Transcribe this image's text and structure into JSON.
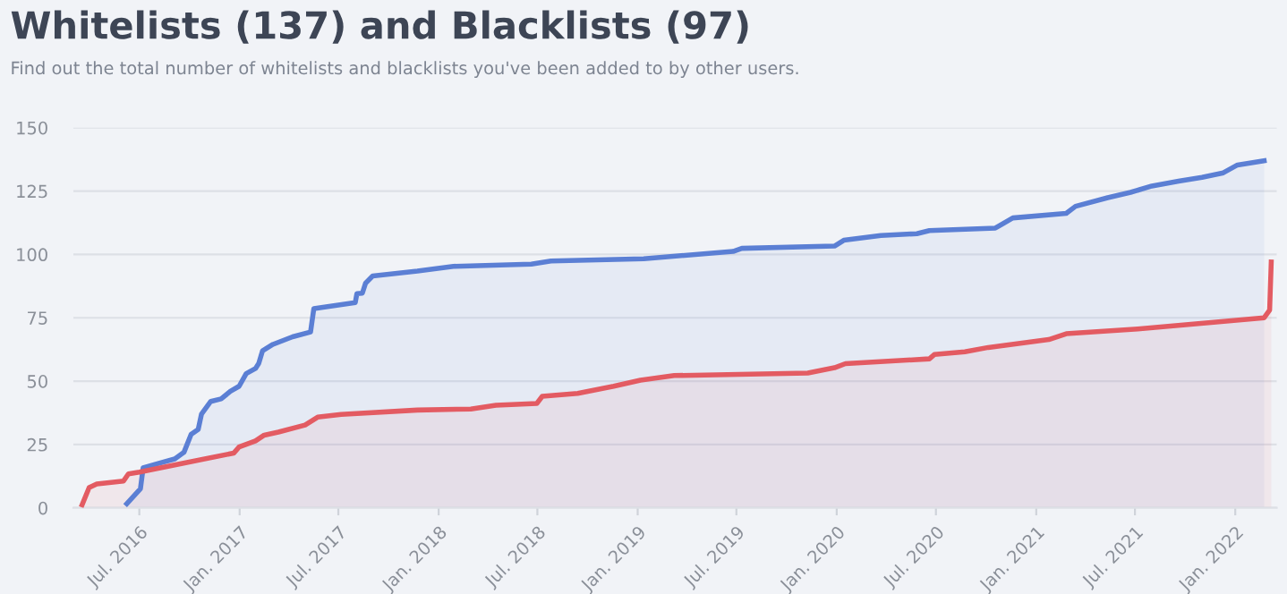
{
  "chart_data": {
    "type": "area",
    "title": "Whitelists (137) and Blacklists (97)",
    "subtitle": "Find out the total number of whitelists and blacklists you've been added to by other users.",
    "series": [
      {
        "color": "#5b7fd4",
        "x": [
          "2016-06-08",
          "2016-07-03",
          "2016-07-08",
          "2016-08-03",
          "2016-09-04",
          "2016-09-21",
          "2016-10-04",
          "2016-10-17",
          "2016-10-23",
          "2016-11-09",
          "2016-11-28",
          "2016-12-15",
          "2016-12-31",
          "2017-01-13",
          "2017-01-30",
          "2017-02-05",
          "2017-02-12",
          "2017-03-03",
          "2017-04-08",
          "2017-05-11",
          "2017-05-17",
          "2017-08-01",
          "2017-08-04",
          "2017-08-14",
          "2017-08-20",
          "2017-09-02",
          "2017-11-23",
          "2018-01-28",
          "2018-06-20",
          "2018-07-26",
          "2019-01-12",
          "2019-06-25",
          "2019-07-11",
          "2019-12-28",
          "2020-01-14",
          "2020-03-22",
          "2020-05-27",
          "2020-06-19",
          "2020-10-18",
          "2020-11-19",
          "2021-02-25",
          "2021-03-14",
          "2021-05-12",
          "2021-06-23",
          "2021-08-01",
          "2021-09-19",
          "2021-11-01",
          "2021-12-10",
          "2022-01-05",
          "2022-02-23"
        ],
        "values": [
          1.6,
          7.5,
          15.8,
          17.4,
          19.3,
          22,
          29,
          31,
          37,
          42,
          43,
          46,
          48,
          53,
          55,
          57,
          62,
          64.5,
          67.5,
          69.4,
          78.6,
          81,
          84.5,
          84.7,
          88.7,
          91.5,
          93.4,
          95.3,
          96.2,
          97.4,
          98.3,
          101.2,
          102.4,
          103.3,
          105.6,
          107.5,
          108.2,
          109.4,
          110.4,
          114.4,
          116.2,
          119,
          122.4,
          124.5,
          127,
          128.9,
          130.4,
          132.2,
          135.3,
          137
        ]
      },
      {
        "color": "#e35b62",
        "x": [
          "2016-03-18",
          "2016-03-31",
          "2016-04-14",
          "2016-06-02",
          "2016-06-11",
          "2016-07-01",
          "2016-09-14",
          "2016-12-21",
          "2016-12-31",
          "2017-01-30",
          "2017-02-15",
          "2017-03-13",
          "2017-05-01",
          "2017-05-24",
          "2017-07-06",
          "2017-11-23",
          "2018-03-01",
          "2018-04-16",
          "2018-06-30",
          "2018-07-10",
          "2018-09-13",
          "2018-11-18",
          "2019-01-06",
          "2019-03-09",
          "2019-11-09",
          "2019-12-28",
          "2020-01-17",
          "2020-06-19",
          "2020-06-28",
          "2020-08-23",
          "2020-10-05",
          "2021-01-24",
          "2021-02-25",
          "2021-07-06",
          "2022-02-23",
          "2022-03-05",
          "2022-03-08"
        ],
        "values": [
          1.2,
          8,
          9.4,
          10.6,
          13.4,
          14.1,
          17.4,
          21.6,
          24,
          26.4,
          28.7,
          29.9,
          32.7,
          35.8,
          36.9,
          38.6,
          39,
          40.5,
          41.2,
          44,
          45.2,
          48,
          50.4,
          52.2,
          53.2,
          55.3,
          56.9,
          58.8,
          60.5,
          61.6,
          63.3,
          66.4,
          68.7,
          70.6,
          75,
          78,
          97
        ]
      }
    ],
    "xlim": [
      "2016-03-02",
      "2022-03-18"
    ],
    "xticks": [
      {
        "value": "2016-07-01",
        "label": "Jul. 2016"
      },
      {
        "value": "2017-01-01",
        "label": "Jan. 2017"
      },
      {
        "value": "2017-07-01",
        "label": "Jul. 2017"
      },
      {
        "value": "2018-01-01",
        "label": "Jan. 2018"
      },
      {
        "value": "2018-07-01",
        "label": "Jul. 2018"
      },
      {
        "value": "2019-01-01",
        "label": "Jan. 2019"
      },
      {
        "value": "2019-07-01",
        "label": "Jul. 2019"
      },
      {
        "value": "2020-01-01",
        "label": "Jan. 2020"
      },
      {
        "value": "2020-07-01",
        "label": "Jul. 2020"
      },
      {
        "value": "2021-01-01",
        "label": "Jan. 2021"
      },
      {
        "value": "2021-07-01",
        "label": "Jul. 2021"
      },
      {
        "value": "2022-01-01",
        "label": "Jan. 2022"
      }
    ],
    "ylim": [
      0,
      150
    ],
    "yticks": [
      0,
      25,
      50,
      75,
      100,
      125,
      150
    ],
    "grid": "y",
    "legend": false,
    "marker": "none",
    "line_style": "solid"
  }
}
